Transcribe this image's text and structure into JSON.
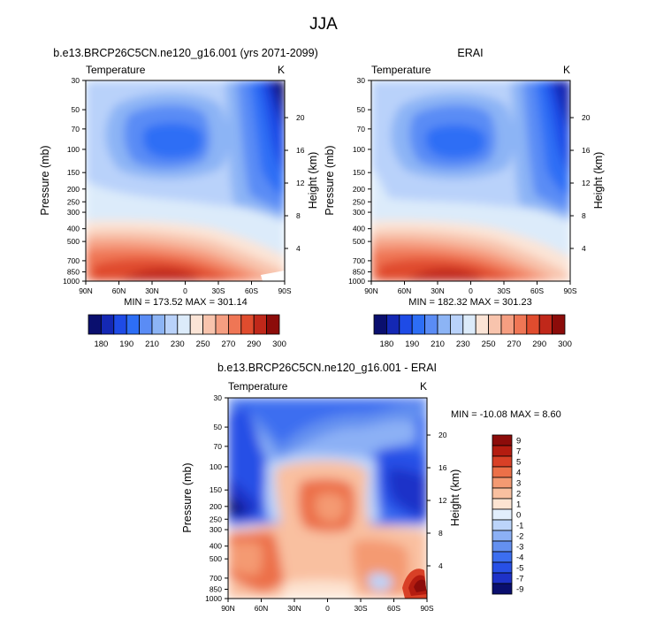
{
  "figure": {
    "title": "JJA"
  },
  "panels": [
    {
      "id": "left",
      "title": "b.e13.BRCP26C5CN.ne120_g16.001 (yrs 2071-2099)",
      "variable_label": "Temperature",
      "units": "K",
      "ylabel_left": "Pressure (mb)",
      "ylabel_right": "Height (km)",
      "stats": "MIN = 173.52   MAX = 301.14"
    },
    {
      "id": "right",
      "title": "ERAI",
      "variable_label": "Temperature",
      "units": "K",
      "ylabel_left": "Pressure (mb)",
      "ylabel_right": "Height (km)",
      "stats": "MIN = 182.32   MAX = 301.23"
    },
    {
      "id": "diff",
      "title": "b.e13.BRCP26C5CN.ne120_g16.001 - ERAI",
      "variable_label": "Temperature",
      "units": "K",
      "ylabel_left": "Pressure (mb)",
      "ylabel_right": "Height (km)",
      "stats": "MIN = -10.08   MAX =   8.60"
    }
  ],
  "chart_data": [
    {
      "type": "heatmap",
      "title": "b.e13.BRCP26C5CN.ne120_g16.001 (yrs 2071-2099)",
      "x": [
        "90N",
        "60N",
        "30N",
        "0",
        "30S",
        "60S",
        "90S"
      ],
      "xlim": [
        90,
        -90
      ],
      "y_pressure_ticks": [
        30,
        50,
        70,
        100,
        150,
        200,
        250,
        300,
        400,
        500,
        700,
        850,
        1000
      ],
      "y_height_ticks": [
        4,
        8,
        12,
        16,
        20
      ],
      "ylim": [
        1000,
        30
      ],
      "yscale": "log",
      "min": 173.52,
      "max": 301.14,
      "colorbar_levels": [
        180,
        190,
        200,
        210,
        220,
        230,
        240,
        250,
        260,
        270,
        280,
        290,
        300
      ],
      "colorbar_labels": [
        "180",
        "190",
        "210",
        "230",
        "250",
        "270",
        "290",
        "300"
      ]
    },
    {
      "type": "heatmap",
      "title": "ERAI",
      "x": [
        "90N",
        "60N",
        "30N",
        "0",
        "30S",
        "60S",
        "90S"
      ],
      "xlim": [
        90,
        -90
      ],
      "y_pressure_ticks": [
        30,
        50,
        70,
        100,
        150,
        200,
        250,
        300,
        400,
        500,
        700,
        850,
        1000
      ],
      "y_height_ticks": [
        4,
        8,
        12,
        16,
        20
      ],
      "ylim": [
        1000,
        30
      ],
      "yscale": "log",
      "min": 182.32,
      "max": 301.23,
      "colorbar_levels": [
        180,
        190,
        200,
        210,
        220,
        230,
        240,
        250,
        260,
        270,
        280,
        290,
        300
      ],
      "colorbar_labels": [
        "180",
        "190",
        "210",
        "230",
        "250",
        "270",
        "290",
        "300"
      ]
    },
    {
      "type": "heatmap",
      "title": "b.e13.BRCP26C5CN.ne120_g16.001 - ERAI",
      "x": [
        "90N",
        "60N",
        "30N",
        "0",
        "30S",
        "60S",
        "90S"
      ],
      "xlim": [
        90,
        -90
      ],
      "y_pressure_ticks": [
        30,
        50,
        70,
        100,
        150,
        200,
        250,
        300,
        400,
        500,
        700,
        850,
        1000
      ],
      "y_height_ticks": [
        4,
        8,
        12,
        16,
        20
      ],
      "ylim": [
        1000,
        30
      ],
      "yscale": "log",
      "min": -10.08,
      "max": 8.6,
      "colorbar_levels": [
        -9,
        -7,
        -5,
        -4,
        -3,
        -2,
        -1,
        0,
        1,
        2,
        3,
        4,
        5,
        7,
        9
      ],
      "colorbar_labels": [
        "9",
        "7",
        "5",
        "4",
        "3",
        "2",
        "1",
        "0",
        "-1",
        "-2",
        "-3",
        "-4",
        "-5",
        "-7",
        "-9"
      ]
    }
  ],
  "colors": {
    "abs_palette": [
      "#0a0f6e",
      "#1428b4",
      "#1e4be6",
      "#2d6ef5",
      "#5a8cf5",
      "#8cb4f5",
      "#b9d2fa",
      "#dcebfa",
      "#fbe4d6",
      "#f8c4ad",
      "#f59e81",
      "#ef7655",
      "#e04c2e",
      "#c0281a",
      "#8c0c0a"
    ],
    "diff_palette": [
      "#0a0f6e",
      "#1e32c8",
      "#2850e6",
      "#3c6ef0",
      "#6490f0",
      "#8cb0f5",
      "#bcd4fa",
      "#e2eefc",
      "#fde4d2",
      "#f9c0a0",
      "#f49a72",
      "#ec7048",
      "#d84026",
      "#b41c10",
      "#8c0c0a"
    ]
  }
}
